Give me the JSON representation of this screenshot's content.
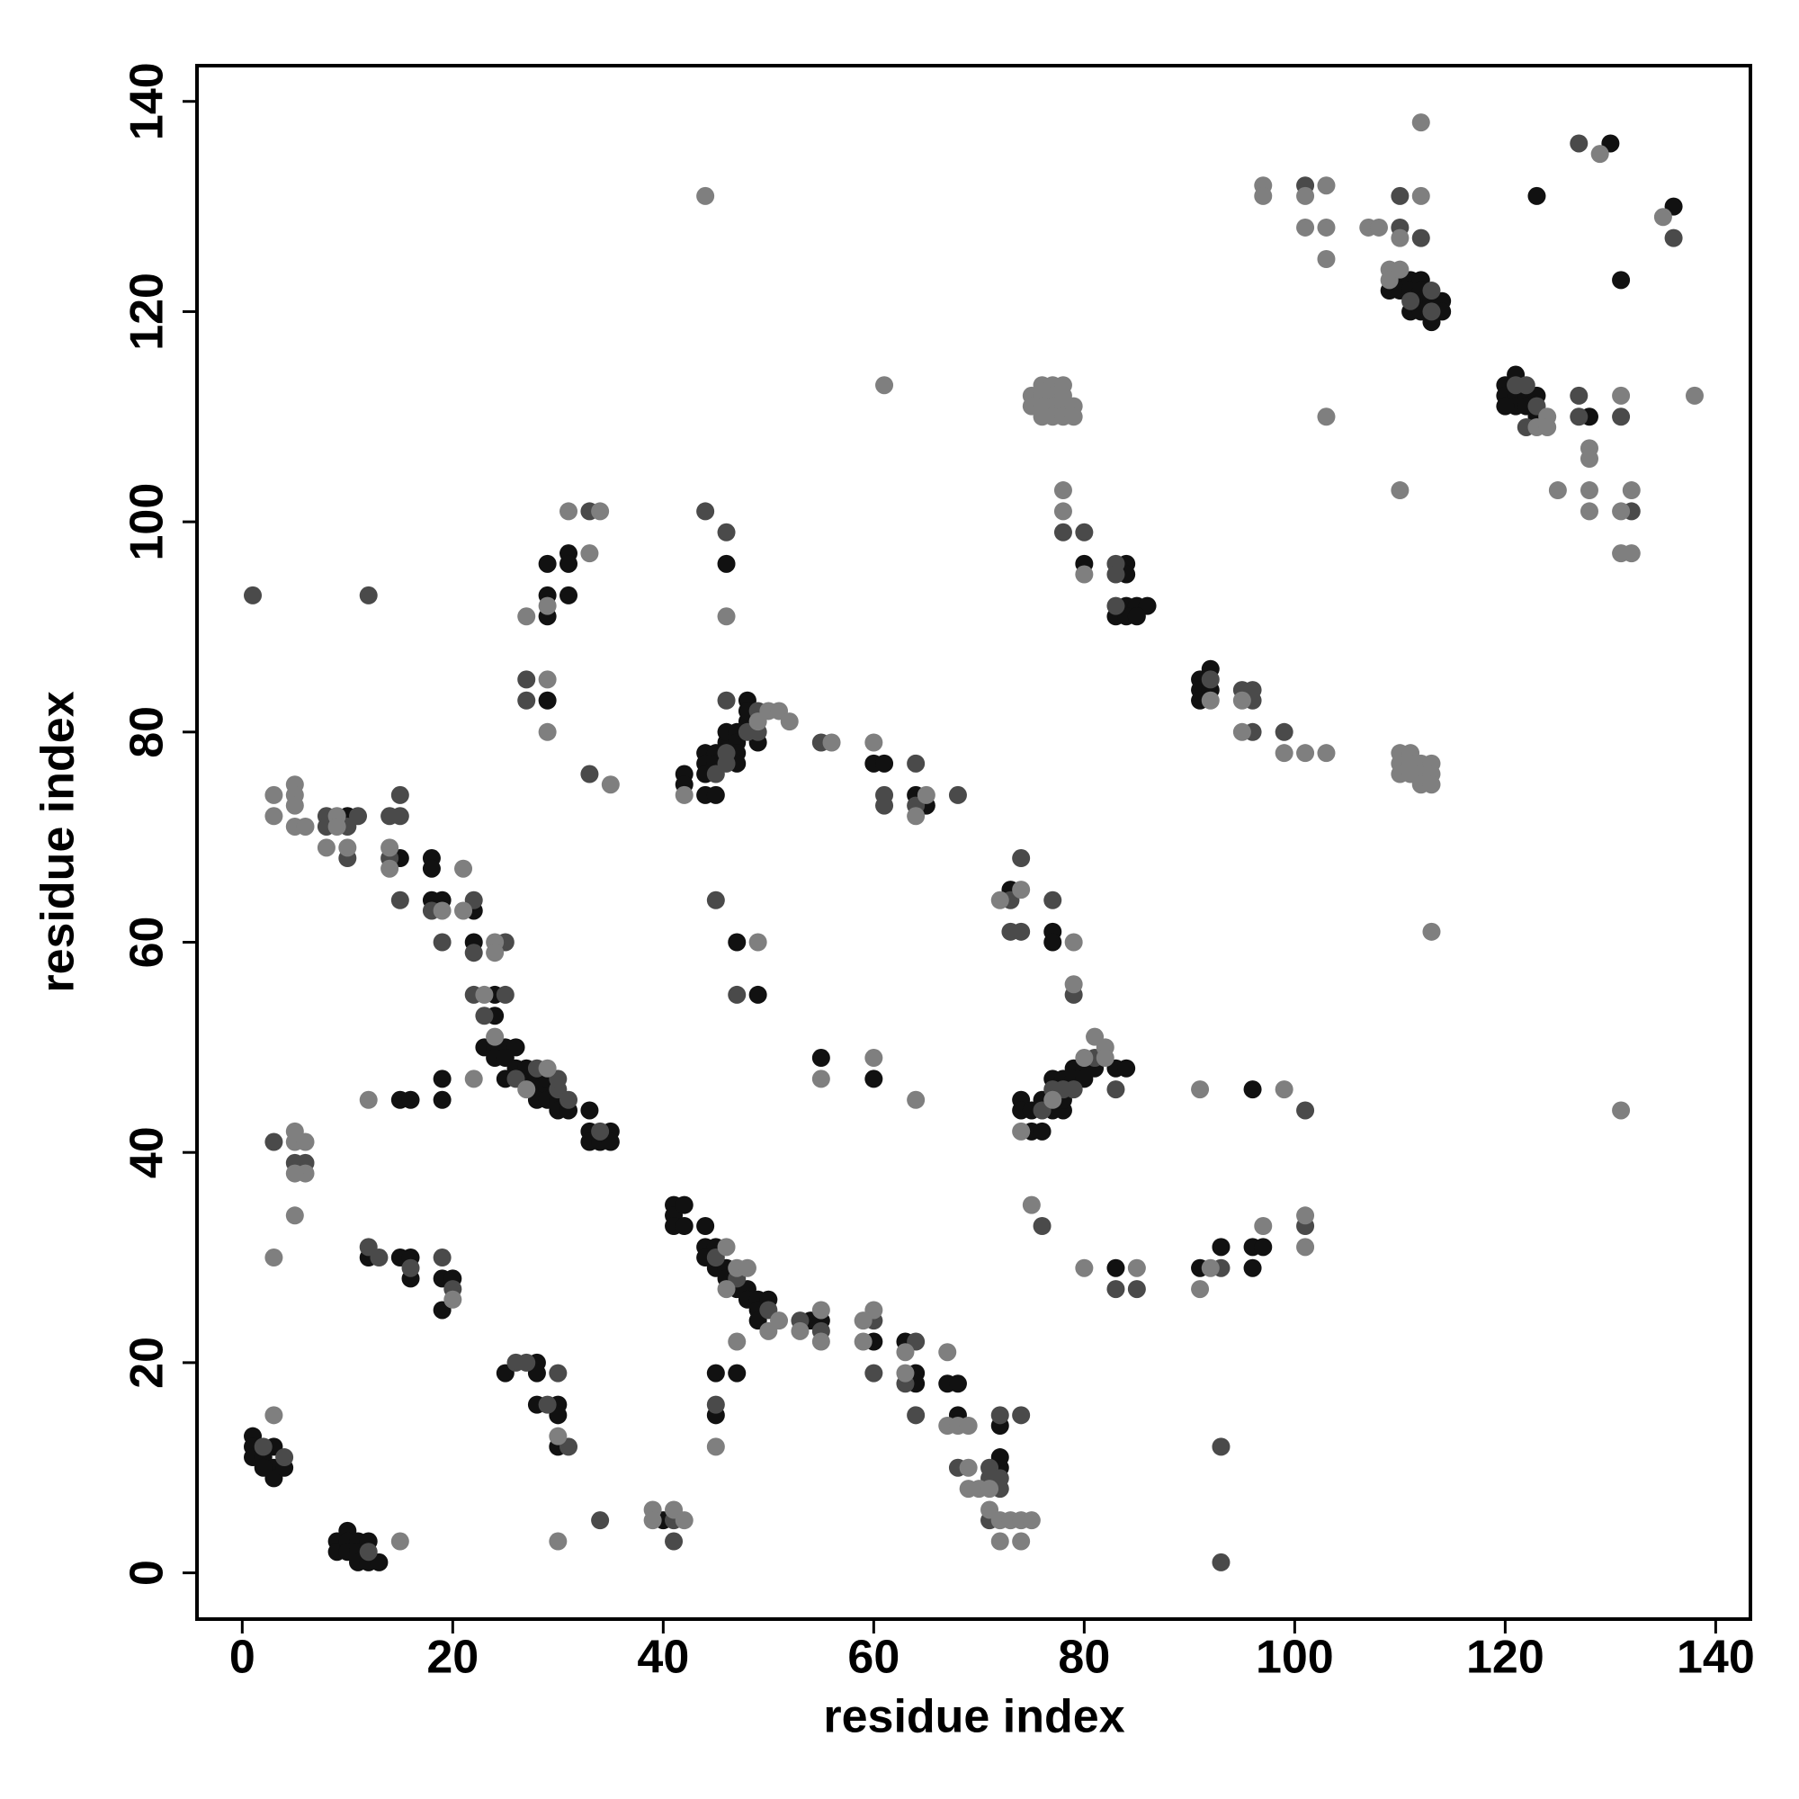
{
  "chart_data": {
    "type": "scatter",
    "x_label": "residue index",
    "y_label": "residue index",
    "xlim": [
      -4.3,
      143.3
    ],
    "ylim": [
      -4.4,
      143.4
    ],
    "xticks": [
      0,
      20,
      40,
      60,
      80,
      100,
      120,
      140
    ],
    "yticks": [
      0,
      20,
      40,
      60,
      80,
      100,
      120,
      140
    ],
    "series": [
      {
        "color": "#111111",
        "x": [
          1,
          1,
          1,
          2,
          3,
          3,
          3,
          2,
          4,
          9,
          9,
          10,
          10,
          10,
          11,
          11,
          11,
          12,
          12,
          13,
          10,
          15,
          12,
          15,
          16,
          16,
          15,
          16,
          19,
          20,
          19,
          19,
          19,
          18,
          18,
          18,
          19,
          22,
          22,
          24,
          24,
          23,
          24,
          25,
          26,
          24,
          25,
          26,
          27,
          25,
          27,
          28,
          28,
          29,
          28,
          29,
          30,
          30,
          31,
          33,
          33,
          35,
          33,
          34,
          35,
          29,
          25,
          28,
          28,
          28,
          30,
          30,
          30,
          29,
          29,
          29,
          29,
          31,
          31,
          31,
          40,
          41,
          41,
          41,
          42,
          42,
          44,
          44,
          44,
          45,
          45,
          46,
          46,
          47,
          48,
          48,
          49,
          49,
          49,
          50,
          54,
          55,
          45,
          47,
          45,
          46,
          47,
          49,
          55,
          60,
          42,
          42,
          44,
          44,
          44,
          44,
          45,
          45,
          45,
          46,
          46,
          47,
          47,
          47,
          47,
          48,
          48,
          49,
          48,
          60,
          61,
          64,
          65,
          60,
          63,
          64,
          64,
          67,
          68,
          68,
          72,
          72,
          72,
          73,
          77,
          77,
          74,
          74,
          75,
          75,
          76,
          76,
          77,
          77,
          78,
          78,
          78,
          79,
          79,
          80,
          80,
          81,
          83,
          84,
          83,
          91,
          93,
          96,
          96,
          97,
          96,
          80,
          84,
          84,
          84,
          85,
          86,
          83,
          84,
          85,
          91,
          91,
          91,
          92,
          92,
          109,
          110,
          110,
          111,
          111,
          112,
          112,
          111,
          112,
          112,
          113,
          114,
          114,
          113,
          120,
          120,
          121,
          121,
          121,
          122,
          122,
          123,
          123,
          120,
          128,
          123,
          130,
          131,
          136
        ],
        "values": [
          13,
          12,
          11,
          11,
          12,
          10,
          9,
          10,
          10,
          3,
          2,
          4,
          3,
          2,
          3,
          2,
          1,
          3,
          1,
          1,
          72,
          68,
          30,
          30,
          30,
          28,
          45,
          45,
          28,
          28,
          25,
          47,
          45,
          68,
          67,
          64,
          64,
          63,
          60,
          55,
          53,
          50,
          50,
          50,
          50,
          49,
          49,
          48,
          48,
          47,
          47,
          47,
          46,
          46,
          45,
          45,
          45,
          44,
          44,
          44,
          42,
          42,
          41,
          41,
          41,
          47,
          19,
          20,
          19,
          16,
          16,
          15,
          12,
          83,
          96,
          93,
          91,
          97,
          96,
          93,
          5,
          35,
          34,
          33,
          35,
          33,
          33,
          31,
          30,
          31,
          29,
          29,
          28,
          27,
          27,
          26,
          26,
          25,
          24,
          26,
          24,
          24,
          19,
          19,
          15,
          96,
          60,
          55,
          49,
          47,
          76,
          75,
          78,
          77,
          76,
          74,
          78,
          77,
          74,
          79,
          80,
          80,
          79,
          78,
          77,
          81,
          83,
          79,
          82,
          77,
          77,
          74,
          73,
          22,
          22,
          19,
          18,
          18,
          18,
          15,
          10,
          11,
          14,
          65,
          61,
          60,
          45,
          44,
          44,
          42,
          42,
          45,
          44,
          47,
          44,
          45,
          47,
          48,
          47,
          48,
          47,
          48,
          48,
          48,
          29,
          29,
          31,
          31,
          29,
          31,
          46,
          96,
          96,
          95,
          92,
          92,
          92,
          91,
          91,
          91,
          85,
          84,
          83,
          86,
          84,
          122,
          123,
          122,
          123,
          122,
          123,
          122,
          120,
          120,
          121,
          121,
          121,
          120,
          119,
          113,
          112,
          114,
          112,
          111,
          112,
          111,
          112,
          110,
          111,
          110,
          131,
          136,
          123,
          130
        ]
      },
      {
        "color": "#4a4a4a",
        "x": [
          2,
          4,
          12,
          1,
          12,
          3,
          5,
          6,
          8,
          8,
          10,
          10,
          11,
          14,
          15,
          15,
          14,
          15,
          12,
          13,
          16,
          19,
          20,
          18,
          19,
          22,
          22,
          25,
          22,
          25,
          23,
          26,
          28,
          30,
          31,
          34,
          30,
          26,
          27,
          30,
          29,
          31,
          34,
          27,
          27,
          33,
          33,
          41,
          41,
          45,
          47,
          50,
          53,
          55,
          45,
          44,
          46,
          45,
          47,
          46,
          46,
          48,
          49,
          49,
          46,
          45,
          55,
          61,
          61,
          64,
          64,
          68,
          60,
          60,
          64,
          63,
          64,
          68,
          71,
          71,
          72,
          72,
          71,
          72,
          74,
          73,
          73,
          74,
          74,
          77,
          79,
          76,
          77,
          78,
          79,
          81,
          83,
          76,
          83,
          85,
          93,
          93,
          93,
          101,
          101,
          78,
          80,
          83,
          83,
          83,
          92,
          95,
          96,
          96,
          96,
          99,
          101,
          110,
          110,
          112,
          111,
          113,
          113,
          121,
          122,
          122,
          123,
          127,
          127,
          131,
          132,
          127,
          136
        ],
        "values": [
          12,
          11,
          2,
          93,
          93,
          41,
          39,
          39,
          72,
          71,
          71,
          68,
          72,
          72,
          72,
          74,
          68,
          64,
          31,
          30,
          29,
          30,
          27,
          63,
          60,
          64,
          59,
          60,
          55,
          55,
          53,
          47,
          48,
          46,
          45,
          42,
          47,
          20,
          20,
          19,
          16,
          12,
          5,
          85,
          83,
          101,
          76,
          5,
          3,
          30,
          28,
          25,
          24,
          23,
          16,
          101,
          99,
          64,
          55,
          78,
          77,
          80,
          82,
          80,
          83,
          76,
          79,
          74,
          73,
          77,
          73,
          74,
          24,
          19,
          22,
          18,
          15,
          10,
          10,
          9,
          9,
          8,
          5,
          15,
          15,
          64,
          61,
          61,
          68,
          64,
          55,
          44,
          46,
          46,
          46,
          49,
          46,
          33,
          27,
          27,
          29,
          12,
          1,
          33,
          44,
          99,
          99,
          96,
          95,
          92,
          85,
          84,
          84,
          83,
          80,
          80,
          132,
          131,
          128,
          127,
          121,
          122,
          120,
          113,
          113,
          109,
          111,
          112,
          110,
          110,
          101,
          136,
          127
        ]
      },
      {
        "color": "#7f7f7f",
        "x": [
          3,
          15,
          12,
          3,
          5,
          5,
          6,
          5,
          6,
          5,
          3,
          3,
          5,
          5,
          5,
          5,
          6,
          8,
          9,
          9,
          10,
          14,
          14,
          20,
          19,
          21,
          21,
          24,
          24,
          23,
          22,
          24,
          29,
          27,
          30,
          30,
          27,
          29,
          29,
          29,
          31,
          34,
          33,
          35,
          39,
          39,
          41,
          42,
          46,
          47,
          48,
          50,
          51,
          53,
          55,
          55,
          47,
          45,
          46,
          44,
          46,
          49,
          55,
          60,
          64,
          42,
          49,
          50,
          51,
          52,
          56,
          60,
          65,
          64,
          60,
          59,
          59,
          63,
          63,
          67,
          67,
          68,
          69,
          69,
          69,
          70,
          71,
          71,
          72,
          73,
          74,
          75,
          72,
          74,
          61,
          74,
          72,
          79,
          79,
          80,
          81,
          82,
          82,
          74,
          77,
          75,
          80,
          85,
          91,
          92,
          97,
          101,
          101,
          91,
          99,
          75,
          75,
          76,
          76,
          77,
          77,
          76,
          77,
          78,
          78,
          78,
          76,
          77,
          78,
          79,
          79,
          78,
          78,
          80,
          92,
          95,
          95,
          99,
          101,
          103,
          110,
          110,
          110,
          111,
          111,
          111,
          112,
          112,
          112,
          113,
          113,
          113,
          113,
          97,
          97,
          101,
          101,
          103,
          103,
          103,
          107,
          108,
          103,
          110,
          112,
          112,
          110,
          109,
          109,
          110,
          123,
          124,
          124,
          125,
          128,
          128,
          128,
          128,
          131,
          131,
          132,
          131,
          132,
          138,
          129,
          135,
          131
        ],
        "values": [
          15,
          3,
          45,
          30,
          42,
          41,
          38,
          38,
          41,
          34,
          74,
          72,
          75,
          74,
          73,
          71,
          71,
          69,
          72,
          71,
          69,
          69,
          67,
          26,
          63,
          67,
          63,
          60,
          59,
          55,
          47,
          51,
          48,
          46,
          13,
          3,
          91,
          85,
          80,
          92,
          101,
          101,
          97,
          75,
          6,
          5,
          6,
          5,
          31,
          29,
          29,
          23,
          24,
          23,
          25,
          22,
          22,
          12,
          27,
          131,
          91,
          60,
          47,
          49,
          45,
          74,
          81,
          82,
          82,
          81,
          79,
          79,
          74,
          72,
          25,
          24,
          22,
          21,
          19,
          21,
          14,
          14,
          14,
          10,
          8,
          8,
          8,
          6,
          5,
          5,
          5,
          5,
          3,
          3,
          113,
          65,
          64,
          60,
          56,
          49,
          51,
          50,
          49,
          42,
          45,
          35,
          29,
          29,
          27,
          29,
          33,
          34,
          31,
          46,
          46,
          112,
          111,
          113,
          112,
          113,
          112,
          111,
          111,
          113,
          112,
          111,
          110,
          110,
          110,
          111,
          110,
          103,
          101,
          95,
          83,
          83,
          80,
          78,
          78,
          78,
          78,
          77,
          76,
          78,
          77,
          76,
          77,
          76,
          75,
          77,
          76,
          75,
          61,
          132,
          131,
          131,
          128,
          132,
          128,
          125,
          128,
          128,
          110,
          127,
          138,
          131,
          103,
          124,
          123,
          124,
          109,
          110,
          109,
          103,
          107,
          106,
          103,
          101,
          112,
          101,
          103,
          97,
          97,
          112,
          135,
          129,
          44
        ]
      }
    ]
  }
}
